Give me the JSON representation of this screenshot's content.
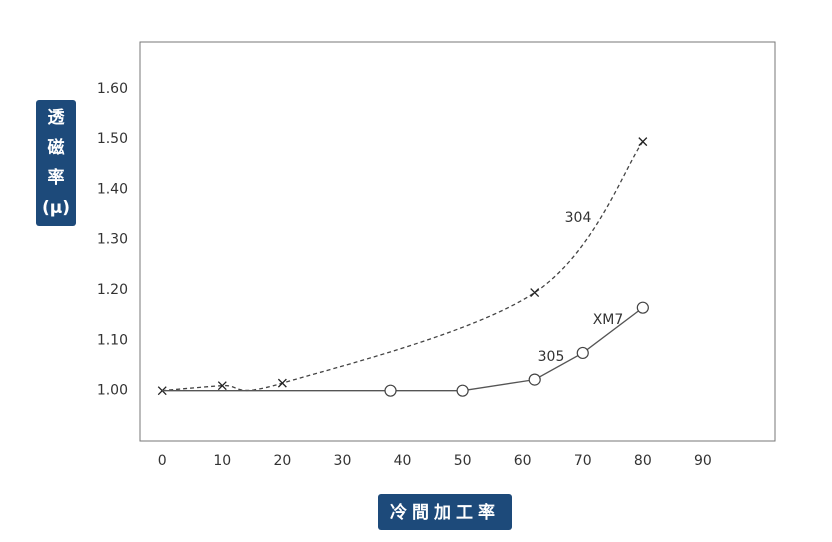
{
  "chart_data": {
    "type": "line",
    "x_label": "冷間加工率",
    "y_label": [
      "透",
      "磁",
      "率",
      "(μ)"
    ],
    "xlim": [
      -3.7,
      102
    ],
    "xticks": [
      0,
      10,
      20,
      30,
      40,
      50,
      60,
      70,
      80,
      90
    ],
    "ylim": [
      0.9,
      1.693
    ],
    "yticks": [
      {
        "value": 1.0,
        "label": "1.00"
      },
      {
        "value": 1.1,
        "label": "1.10"
      },
      {
        "value": 1.2,
        "label": "1.20"
      },
      {
        "value": 1.3,
        "label": "1.30"
      },
      {
        "value": 1.4,
        "label": "1.40"
      },
      {
        "value": 1.5,
        "label": "1.50"
      },
      {
        "value": 1.6,
        "label": "1.60"
      }
    ],
    "series": [
      {
        "name": "304",
        "color": "#444",
        "dashed": true,
        "marker": "x",
        "x": [
          0,
          10,
          20,
          62,
          80
        ],
        "values": [
          1.0,
          1.01,
          1.015,
          1.195,
          1.495
        ]
      },
      {
        "name": "305",
        "color": "#555",
        "dashed": false,
        "marker": "circle",
        "x": [
          0,
          38,
          50,
          62,
          70,
          80
        ],
        "values": [
          1.0,
          1.0,
          1.0,
          1.022,
          1.075,
          1.165
        ]
      }
    ],
    "annotations": [
      "304",
      "305",
      "XM7"
    ]
  }
}
